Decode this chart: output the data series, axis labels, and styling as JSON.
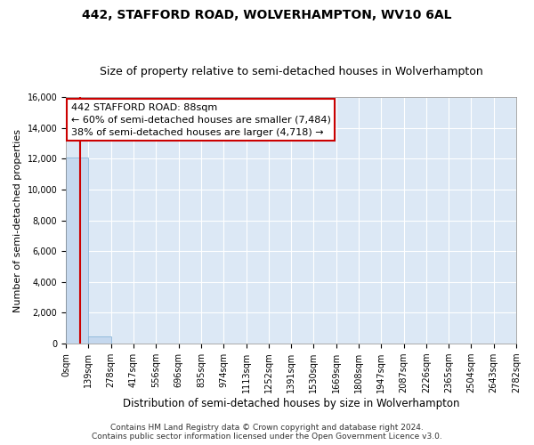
{
  "title": "442, STAFFORD ROAD, WOLVERHAMPTON, WV10 6AL",
  "subtitle": "Size of property relative to semi-detached houses in Wolverhampton",
  "xlabel": "Distribution of semi-detached houses by size in Wolverhampton",
  "ylabel": "Number of semi-detached properties",
  "property_size": 88,
  "annotation_text_line1": "442 STAFFORD ROAD: 88sqm",
  "annotation_text_line2": "← 60% of semi-detached houses are smaller (7,484)",
  "annotation_text_line3": "38% of semi-detached houses are larger (4,718) →",
  "footer_line1": "Contains HM Land Registry data © Crown copyright and database right 2024.",
  "footer_line2": "Contains public sector information licensed under the Open Government Licence v3.0.",
  "bar_color": "#c5d8ee",
  "bar_edge_color": "#7aadd4",
  "vline_color": "#cc0000",
  "annotation_box_edgecolor": "#cc0000",
  "annotation_bg": "#ffffff",
  "bg_color": "#dce8f5",
  "grid_color": "#ffffff",
  "fig_bg_color": "#ffffff",
  "ylim": [
    0,
    16000
  ],
  "yticks": [
    0,
    2000,
    4000,
    6000,
    8000,
    10000,
    12000,
    14000,
    16000
  ],
  "bin_edges": [
    0,
    139,
    278,
    417,
    556,
    696,
    835,
    974,
    1113,
    1252,
    1391,
    1530,
    1669,
    1808,
    1947,
    2087,
    2226,
    2365,
    2504,
    2643,
    2782
  ],
  "bin_heights": [
    12050,
    490,
    0,
    0,
    0,
    0,
    0,
    0,
    0,
    0,
    0,
    0,
    0,
    0,
    0,
    0,
    0,
    0,
    0,
    0
  ],
  "title_fontsize": 10,
  "subtitle_fontsize": 9,
  "xlabel_fontsize": 8.5,
  "ylabel_fontsize": 8,
  "tick_fontsize": 7,
  "annotation_fontsize": 8,
  "footer_fontsize": 6.5
}
